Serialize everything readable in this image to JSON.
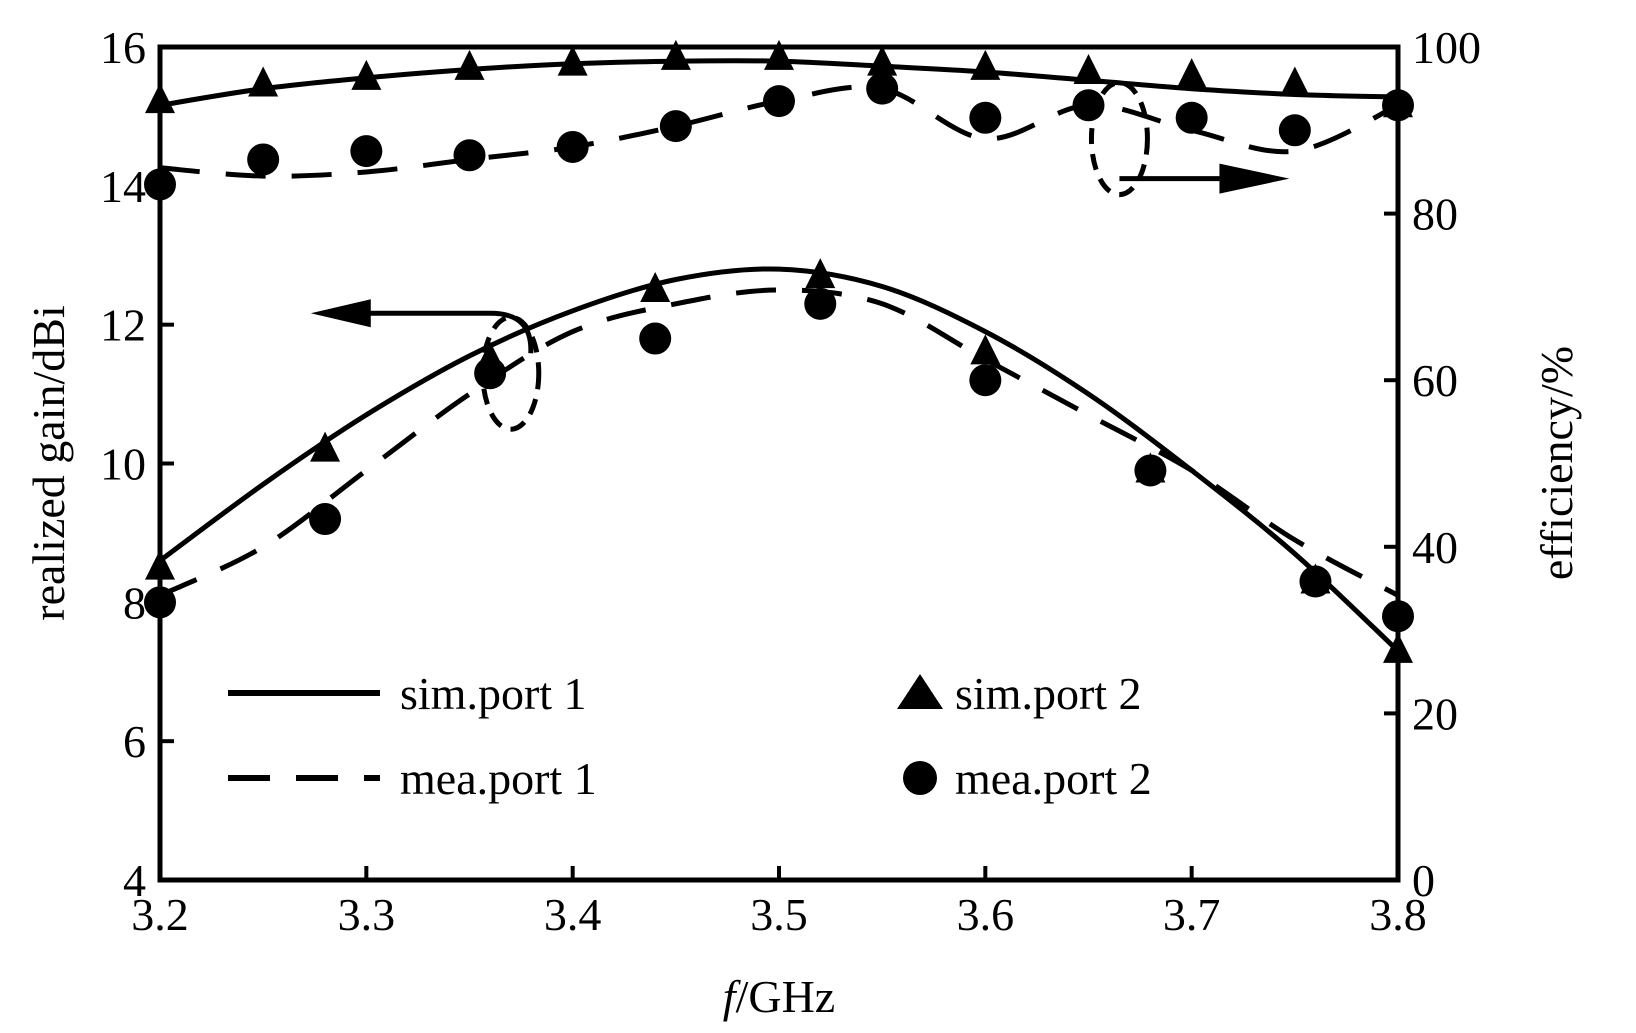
{
  "chart_data": {
    "type": "line",
    "x_axis": {
      "label_italic": "f",
      "label_rest": "/GHz",
      "range": [
        3.2,
        3.8
      ],
      "ticks": [
        "3.2",
        "3.3",
        "3.4",
        "3.5",
        "3.6",
        "3.7",
        "3.8"
      ]
    },
    "y_left": {
      "label": "realized gain/dBi",
      "range": [
        4,
        16
      ],
      "ticks": [
        "4",
        "6",
        "8",
        "10",
        "12",
        "14",
        "16"
      ]
    },
    "y_right": {
      "label": "efficiency/%",
      "range": [
        0,
        100
      ],
      "ticks": [
        "0",
        "20",
        "40",
        "60",
        "80",
        "100"
      ]
    },
    "grid": false,
    "legend": {
      "placement": "bottom-left",
      "entries": [
        {
          "key": "sim_port1",
          "label": "sim.port 1",
          "marker": "solid-line"
        },
        {
          "key": "sim_port2",
          "label": "sim.port 2",
          "marker": "triangle"
        },
        {
          "key": "mea_port1",
          "label": "mea.port 1",
          "marker": "dashed-line"
        },
        {
          "key": "mea_port2",
          "label": "mea.port 2",
          "marker": "circle"
        }
      ]
    },
    "series": [
      {
        "key": "gain_sim_port1",
        "axis": "left",
        "style": "solid",
        "x": [
          3.2,
          3.25,
          3.3,
          3.35,
          3.4,
          3.45,
          3.5,
          3.55,
          3.6,
          3.65,
          3.7,
          3.75,
          3.8
        ],
        "y": [
          8.6,
          9.7,
          10.7,
          11.55,
          12.2,
          12.65,
          12.8,
          12.55,
          11.9,
          11.0,
          9.9,
          8.7,
          7.3
        ]
      },
      {
        "key": "gain_mea_port1",
        "axis": "left",
        "style": "dashed",
        "x": [
          3.2,
          3.25,
          3.3,
          3.35,
          3.4,
          3.45,
          3.5,
          3.55,
          3.6,
          3.65,
          3.7,
          3.75,
          3.8
        ],
        "y": [
          8.1,
          8.8,
          9.9,
          11.0,
          11.9,
          12.3,
          12.5,
          12.3,
          11.5,
          10.7,
          9.9,
          8.9,
          8.1
        ]
      },
      {
        "key": "gain_sim_port2",
        "axis": "left",
        "style": "triangle",
        "x": [
          3.2,
          3.28,
          3.36,
          3.44,
          3.52,
          3.6,
          3.68,
          3.76,
          3.8
        ],
        "y": [
          8.5,
          10.2,
          11.5,
          12.5,
          12.7,
          11.6,
          9.9,
          8.3,
          7.3
        ]
      },
      {
        "key": "gain_mea_port2",
        "axis": "left",
        "style": "circle",
        "x": [
          3.2,
          3.28,
          3.36,
          3.44,
          3.52,
          3.6,
          3.68,
          3.76,
          3.8
        ],
        "y": [
          8.0,
          9.2,
          11.3,
          11.8,
          12.3,
          11.2,
          9.9,
          8.3,
          7.8
        ]
      },
      {
        "key": "eff_sim_port1",
        "axis": "right",
        "style": "solid",
        "x": [
          3.2,
          3.25,
          3.3,
          3.35,
          3.4,
          3.45,
          3.5,
          3.55,
          3.6,
          3.65,
          3.7,
          3.75,
          3.8
        ],
        "y": [
          93,
          95,
          96.3,
          97.3,
          98,
          98.3,
          98.3,
          97.7,
          97,
          96,
          95,
          94.3,
          94
        ]
      },
      {
        "key": "eff_mea_port1",
        "axis": "right",
        "style": "dashed",
        "x": [
          3.2,
          3.25,
          3.3,
          3.35,
          3.4,
          3.45,
          3.5,
          3.55,
          3.6,
          3.65,
          3.7,
          3.75,
          3.8
        ],
        "y": [
          85.5,
          84.5,
          85,
          86.5,
          88,
          90.5,
          93.5,
          95,
          89,
          93,
          90,
          87.5,
          93
        ]
      },
      {
        "key": "eff_sim_port2",
        "axis": "right",
        "style": "triangle",
        "x": [
          3.2,
          3.25,
          3.3,
          3.35,
          3.4,
          3.45,
          3.5,
          3.55,
          3.6,
          3.65,
          3.7,
          3.75,
          3.8
        ],
        "y": [
          93.5,
          95.5,
          96.3,
          97.5,
          98,
          98.7,
          98.7,
          98,
          97.5,
          97,
          96.5,
          95.5,
          93
        ]
      },
      {
        "key": "eff_mea_port2",
        "axis": "right",
        "style": "circle",
        "x": [
          3.2,
          3.25,
          3.3,
          3.35,
          3.4,
          3.45,
          3.5,
          3.55,
          3.6,
          3.65,
          3.7,
          3.75,
          3.8
        ],
        "y": [
          83.5,
          86.5,
          87.5,
          87,
          88,
          90.5,
          93.5,
          95,
          91.5,
          93,
          91.5,
          90,
          93
        ]
      }
    ],
    "annotations": [
      {
        "type": "arrow",
        "direction": "left",
        "target_axis": "left",
        "at": {
          "x": 3.37,
          "y": 11.3
        }
      },
      {
        "type": "arrow",
        "direction": "right",
        "target_axis": "right",
        "at": {
          "x": 3.665,
          "y": 89
        }
      }
    ]
  }
}
